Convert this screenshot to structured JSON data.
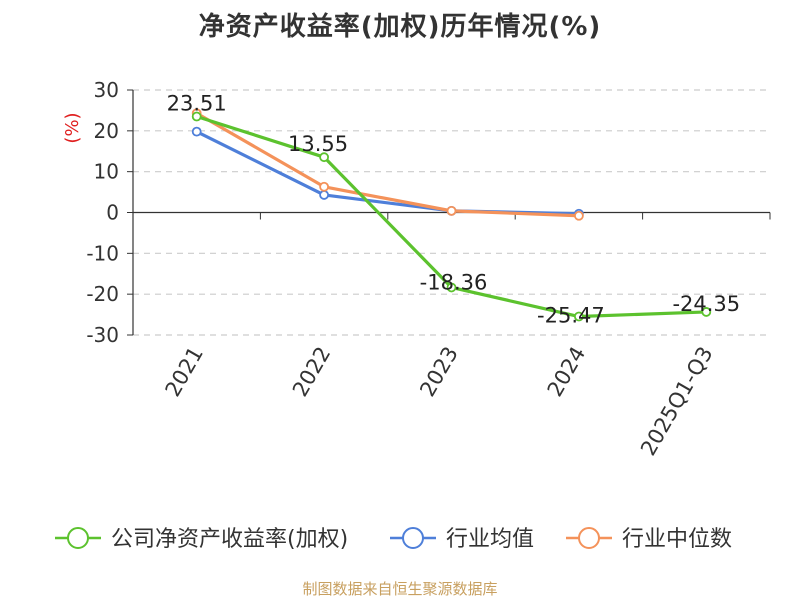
{
  "chart_data": {
    "type": "line",
    "title": "净资产收益率(加权)历年情况(%)",
    "ylabel": "(%)",
    "xlabel": "",
    "categories": [
      "2021",
      "2022",
      "2023",
      "2024",
      "2025Q1-Q3"
    ],
    "ylim": [
      -30,
      30
    ],
    "yticks": [
      30,
      20,
      10,
      0,
      -10,
      -20,
      -30
    ],
    "grid": true,
    "legend_position": "bottom",
    "series": [
      {
        "name": "公司净资产收益率(加权)",
        "color": "#5cc22e",
        "values": [
          23.51,
          13.55,
          -18.36,
          -25.47,
          -24.35
        ],
        "labels": [
          "23.51",
          "13.55",
          "-18.36",
          "-25.47",
          "-24.35"
        ]
      },
      {
        "name": "行业均值",
        "color": "#4e7fd9",
        "values": [
          19.8,
          4.3,
          0.4,
          -0.3,
          null
        ]
      },
      {
        "name": "行业中位数",
        "color": "#f4925a",
        "values": [
          24.3,
          6.3,
          0.4,
          -0.8,
          null
        ]
      }
    ]
  },
  "footer": {
    "source": "制图数据来自恒生聚源数据库"
  }
}
